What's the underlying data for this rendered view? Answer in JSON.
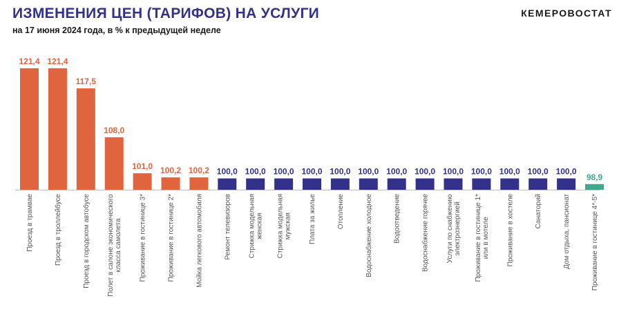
{
  "header": {
    "title": "ИЗМЕНЕНИЯ ЦЕН (ТАРИФОВ) НА УСЛУГИ",
    "subtitle": "на 17 июня 2024 года, в % к предыдущей неделе",
    "brand": "КЕМЕРОВОСТАТ"
  },
  "colors": {
    "increase": "#e0653f",
    "unchanged": "#33318a",
    "decrease": "#3fa88c",
    "axis": "#bfbfbf",
    "category_text": "#555555"
  },
  "chart_data": {
    "type": "bar",
    "title": "ИЗМЕНЕНИЯ ЦЕН (ТАРИФОВ) НА УСЛУГИ",
    "subtitle": "на 17 июня 2024 года, в % к предыдущей неделе",
    "categories": [
      [
        "Проезд в трамвае"
      ],
      [
        "Проезд в троллейбусе"
      ],
      [
        "Проезд в городском автобусе"
      ],
      [
        "Полет в салоне экономического",
        "класса самолета"
      ],
      [
        "Проживание в гостинице 3*"
      ],
      [
        "Проживание в гостинице 2*"
      ],
      [
        "Мойка легкового автомобиля"
      ],
      [
        "Ремонт телевизоров"
      ],
      [
        "Стрижка модельная",
        "женская"
      ],
      [
        "Стрижка модельная",
        "мужская"
      ],
      [
        "Плата за жилье"
      ],
      [
        "Отопление"
      ],
      [
        "Водоснабжение холодное"
      ],
      [
        "Водоотведение"
      ],
      [
        "Водоснабжение горячее"
      ],
      [
        "Услуги по снабжению",
        "электроэнергией"
      ],
      [
        "Проживание в гостинице 1*",
        "или в мотеле"
      ],
      [
        "Проживание в хостеле"
      ],
      [
        "Санаторий"
      ],
      [
        "Дом отдыха, пансионат"
      ],
      [
        "Проживание в гостинице 4*-5*"
      ]
    ],
    "values": [
      121.4,
      121.4,
      117.5,
      108.0,
      101.0,
      100.2,
      100.2,
      100.0,
      100.0,
      100.0,
      100.0,
      100.0,
      100.0,
      100.0,
      100.0,
      100.0,
      100.0,
      100.0,
      100.0,
      100.0,
      98.9
    ],
    "value_labels": [
      "121,4",
      "121,4",
      "117,5",
      "108,0",
      "101,0",
      "100,2",
      "100,2",
      "100,0",
      "100,0",
      "100,0",
      "100,0",
      "100,0",
      "100,0",
      "100,0",
      "100,0",
      "100,0",
      "100,0",
      "100,0",
      "100,0",
      "100,0",
      "98,9"
    ],
    "xlabel": "",
    "ylabel": "",
    "ylim": [
      97.8,
      121.4
    ],
    "grid": false,
    "legend": "none"
  }
}
